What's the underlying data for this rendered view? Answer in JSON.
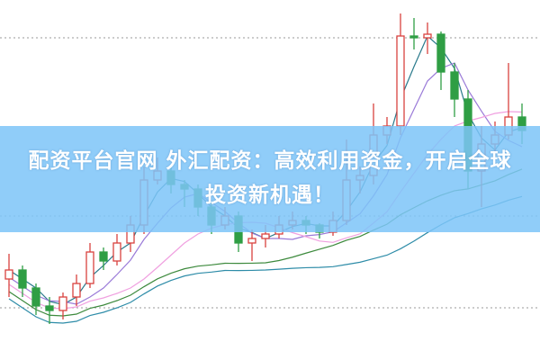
{
  "chart_data": {
    "type": "candlestick",
    "title": "",
    "xlabel": "",
    "ylabel": "",
    "grid": "dotted horizontal",
    "gridlines": [
      58,
      160,
      358
    ],
    "ylim": [
      0,
      400
    ],
    "up_color": "#d9423f",
    "down_color": "#2f9e44",
    "moving_average_colors": [
      "#2a7a8c",
      "#9a7ad8",
      "#f0a0e0",
      "#3d8a3d",
      "#2e8ca8"
    ],
    "candles": [
      {
        "o": 90,
        "c": 100,
        "h": 118,
        "l": 70
      },
      {
        "o": 100,
        "c": 80,
        "h": 105,
        "l": 70
      },
      {
        "o": 80,
        "c": 60,
        "h": 85,
        "l": 50
      },
      {
        "o": 60,
        "c": 55,
        "h": 70,
        "l": 40
      },
      {
        "o": 55,
        "c": 70,
        "h": 75,
        "l": 45
      },
      {
        "o": 70,
        "c": 85,
        "h": 95,
        "l": 60
      },
      {
        "o": 85,
        "c": 120,
        "h": 130,
        "l": 80
      },
      {
        "o": 120,
        "c": 110,
        "h": 125,
        "l": 100
      },
      {
        "o": 110,
        "c": 130,
        "h": 140,
        "l": 105
      },
      {
        "o": 130,
        "c": 150,
        "h": 160,
        "l": 120
      },
      {
        "o": 150,
        "c": 200,
        "h": 215,
        "l": 140
      },
      {
        "o": 200,
        "c": 210,
        "h": 225,
        "l": 195
      },
      {
        "o": 210,
        "c": 195,
        "h": 215,
        "l": 185
      },
      {
        "o": 195,
        "c": 190,
        "h": 200,
        "l": 170
      },
      {
        "o": 190,
        "c": 170,
        "h": 195,
        "l": 160
      },
      {
        "o": 170,
        "c": 150,
        "h": 175,
        "l": 140
      },
      {
        "o": 150,
        "c": 160,
        "h": 170,
        "l": 145
      },
      {
        "o": 160,
        "c": 130,
        "h": 165,
        "l": 120
      },
      {
        "o": 130,
        "c": 135,
        "h": 145,
        "l": 110
      },
      {
        "o": 135,
        "c": 140,
        "h": 150,
        "l": 125
      },
      {
        "o": 140,
        "c": 150,
        "h": 160,
        "l": 135
      },
      {
        "o": 150,
        "c": 155,
        "h": 165,
        "l": 145
      },
      {
        "o": 155,
        "c": 150,
        "h": 160,
        "l": 140
      },
      {
        "o": 150,
        "c": 142,
        "h": 152,
        "l": 135
      },
      {
        "o": 142,
        "c": 155,
        "h": 165,
        "l": 138
      },
      {
        "o": 155,
        "c": 200,
        "h": 245,
        "l": 150
      },
      {
        "o": 200,
        "c": 205,
        "h": 215,
        "l": 185
      },
      {
        "o": 205,
        "c": 250,
        "h": 285,
        "l": 195
      },
      {
        "o": 250,
        "c": 260,
        "h": 270,
        "l": 240
      },
      {
        "o": 260,
        "c": 360,
        "h": 385,
        "l": 250
      },
      {
        "o": 360,
        "c": 358,
        "h": 380,
        "l": 345
      },
      {
        "o": 358,
        "c": 362,
        "h": 375,
        "l": 340
      },
      {
        "o": 362,
        "c": 320,
        "h": 365,
        "l": 300
      },
      {
        "o": 320,
        "c": 290,
        "h": 330,
        "l": 270
      },
      {
        "o": 290,
        "c": 210,
        "h": 300,
        "l": 190
      },
      {
        "o": 210,
        "c": 240,
        "h": 260,
        "l": 170
      },
      {
        "o": 240,
        "c": 250,
        "h": 265,
        "l": 225
      },
      {
        "o": 250,
        "c": 270,
        "h": 330,
        "l": 245
      },
      {
        "o": 270,
        "c": 255,
        "h": 285,
        "l": 240
      }
    ]
  },
  "banner": {
    "line1": "配资平台官网 外汇配资：高效利用资金，开启全球",
    "line2": "投资新机遇！",
    "color": "#8ecdf8"
  }
}
